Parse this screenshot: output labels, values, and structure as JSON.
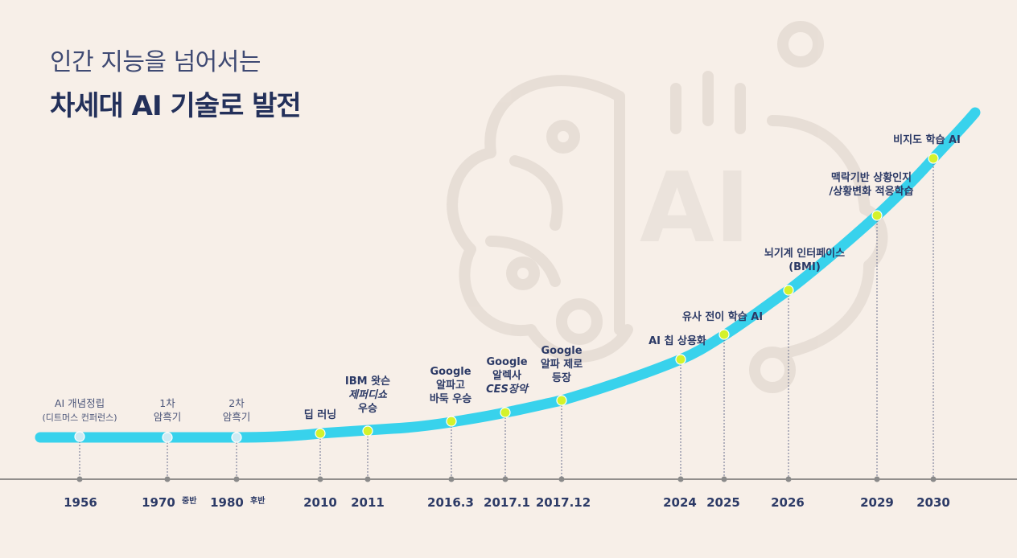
{
  "headline": {
    "line1": "인간 지능을 넘어서는",
    "line2": "차세대 AI 기술로 발전"
  },
  "background_icon": "ai-brain-gear-icon",
  "colors": {
    "curve": "#38d2ec",
    "milestone_dot": "#d4f22c",
    "early_dot": "#cfeaf3",
    "text_dark": "#23305a",
    "baseline": "#555555"
  },
  "milestones": [
    {
      "year": "1956",
      "suffix": "",
      "lines": [
        "AI 개념정립",
        "(디트머스 컨퍼런스)"
      ],
      "era": "early"
    },
    {
      "year": "1970",
      "suffix": "중반",
      "lines": [
        "1차",
        "암흑기"
      ],
      "era": "early"
    },
    {
      "year": "1980",
      "suffix": "후반",
      "lines": [
        "2차",
        "암흑기"
      ],
      "era": "early"
    },
    {
      "year": "2010",
      "suffix": "",
      "lines": [
        "딥 러닝"
      ],
      "era": "modern"
    },
    {
      "year": "2011",
      "suffix": "",
      "lines": [
        "IBM 왓슨",
        "제퍼디쇼",
        "우승"
      ],
      "era": "modern"
    },
    {
      "year": "2016.3",
      "suffix": "",
      "lines": [
        "Google",
        "알파고",
        "바둑 우승"
      ],
      "era": "modern"
    },
    {
      "year": "2017.1",
      "suffix": "",
      "lines": [
        "Google",
        "알렉사",
        "CES장악"
      ],
      "era": "modern"
    },
    {
      "year": "2017.12",
      "suffix": "",
      "lines": [
        "Google",
        "알파 제로",
        "등장"
      ],
      "era": "modern"
    },
    {
      "year": "2024",
      "suffix": "",
      "lines": [
        "AI 칩 상용화"
      ],
      "era": "future"
    },
    {
      "year": "2025",
      "suffix": "",
      "lines": [
        "유사 전이 학습 AI"
      ],
      "era": "future"
    },
    {
      "year": "2026",
      "suffix": "",
      "lines": [
        "뇌기계 인터페이스",
        "(BMI)"
      ],
      "era": "future"
    },
    {
      "year": "2029",
      "suffix": "",
      "lines": [
        "맥락기반 상황인지",
        "/상황변화 적응학습"
      ],
      "era": "future"
    },
    {
      "year": "2030",
      "suffix": "",
      "lines": [
        "비지도 학습 AI"
      ],
      "era": "future"
    }
  ]
}
